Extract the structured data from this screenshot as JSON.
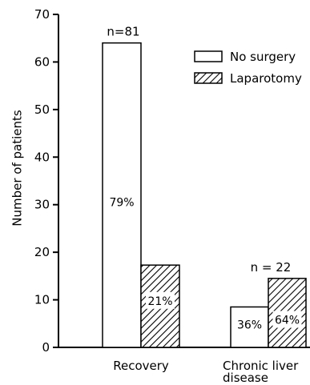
{
  "chart_data": {
    "type": "bar",
    "title": "",
    "xlabel": "",
    "ylabel": "Number of patients",
    "ylim": [
      0,
      70
    ],
    "yticks": [
      0,
      10,
      20,
      30,
      40,
      50,
      60,
      70
    ],
    "grid": false,
    "legend_position": "top-right",
    "categories": [
      "Recovery",
      "Chronic liver disease"
    ],
    "series": [
      {
        "name": "No surgery",
        "values": [
          64,
          8.5
        ],
        "fill": "open",
        "percent_labels": [
          "79%",
          "36%"
        ]
      },
      {
        "name": "Laparotomy",
        "values": [
          17.3,
          14.5
        ],
        "fill": "hatched",
        "percent_labels": [
          "21%",
          "64%"
        ]
      }
    ],
    "group_totals": [
      "n=81",
      "n = 22"
    ],
    "colors": {
      "ink": "#000000",
      "background": "#ffffff"
    }
  }
}
